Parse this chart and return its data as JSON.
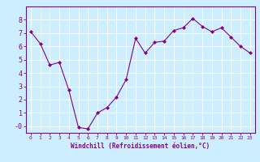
{
  "x": [
    0,
    1,
    2,
    3,
    4,
    5,
    6,
    7,
    8,
    9,
    10,
    11,
    12,
    13,
    14,
    15,
    16,
    17,
    18,
    19,
    20,
    21,
    22,
    23
  ],
  "y": [
    7.1,
    6.2,
    4.6,
    4.8,
    2.7,
    -0.1,
    -0.2,
    1.0,
    1.4,
    2.2,
    3.5,
    6.6,
    5.5,
    6.3,
    6.4,
    7.2,
    7.4,
    8.1,
    7.5,
    7.1,
    7.4,
    6.7,
    6.0,
    5.5
  ],
  "line_color": "#880088",
  "marker": "D",
  "marker_size": 2,
  "xlabel": "Windchill (Refroidissement éolien,°C)",
  "xlim": [
    -0.5,
    23.5
  ],
  "ylim": [
    -0.5,
    9.0
  ],
  "yticks": [
    0,
    1,
    2,
    3,
    4,
    5,
    6,
    7,
    8
  ],
  "ytick_labels": [
    "-0",
    "1",
    "2",
    "3",
    "4",
    "5",
    "6",
    "7",
    "8"
  ],
  "xticks": [
    0,
    1,
    2,
    3,
    4,
    5,
    6,
    7,
    8,
    9,
    10,
    11,
    12,
    13,
    14,
    15,
    16,
    17,
    18,
    19,
    20,
    21,
    22,
    23
  ],
  "bg_color": "#cceeff",
  "grid_color": "#ffffff",
  "label_color": "#880088",
  "tick_color": "#880088",
  "spine_color": "#880088",
  "xlabel_fontsize": 5.5,
  "xtick_fontsize": 4.5,
  "ytick_fontsize": 6
}
